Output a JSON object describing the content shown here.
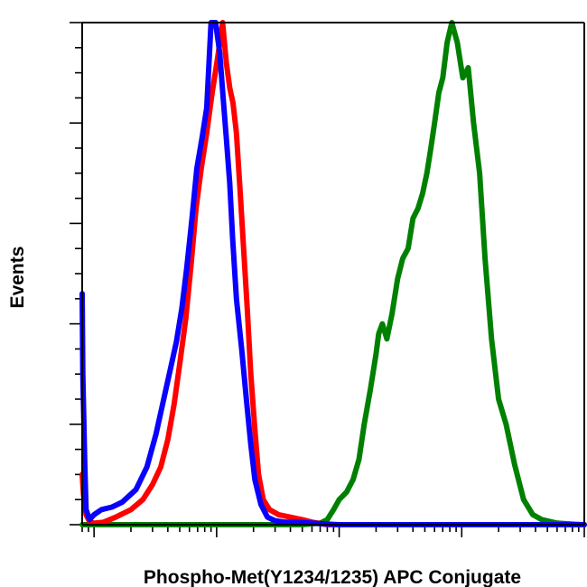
{
  "chart_data": {
    "type": "line",
    "title": "",
    "xlabel": "Phospho-Met(Y1234/1235) APC Conjugate",
    "ylabel": "Events",
    "x_scale": "log",
    "xlim": [
      0.8,
      10000
    ],
    "ylim": [
      0,
      100
    ],
    "grid": false,
    "legend": "none",
    "series": [
      {
        "color": "#0a00ff",
        "x": [
          0.8,
          0.81,
          0.84,
          0.86,
          0.92,
          1.0,
          1.15,
          1.4,
          1.7,
          2.2,
          2.7,
          3.2,
          3.7,
          4.2,
          4.7,
          5.2,
          5.7,
          6.3,
          6.9,
          7.6,
          8.3,
          9.0,
          9.8,
          10.6,
          11.3,
          12.0,
          12.8,
          13.5,
          14.5,
          16.0,
          17.5,
          19.0,
          20.5,
          23.0,
          26,
          30,
          36,
          45,
          60,
          80,
          100,
          10000
        ],
        "y": [
          46,
          30,
          12,
          3,
          1,
          2,
          3,
          3.5,
          4.5,
          7,
          11.5,
          18,
          25,
          31,
          36.5,
          43,
          51,
          61,
          71,
          77,
          83,
          100,
          100,
          94,
          85,
          77,
          68,
          57,
          45,
          35,
          25,
          16,
          9,
          4,
          1.5,
          0.8,
          0.5,
          0.5,
          0.3,
          0.1,
          0,
          0
        ]
      },
      {
        "color": "#ff0000",
        "x": [
          0.8,
          0.82,
          0.86,
          0.92,
          1.0,
          1.2,
          1.5,
          2.0,
          2.5,
          3.0,
          3.5,
          4.0,
          4.5,
          5.0,
          5.6,
          6.2,
          6.8,
          7.5,
          8.3,
          9.2,
          10.2,
          11.2,
          12.0,
          12.8,
          13.6,
          14.5,
          15.5,
          16.5,
          17.8,
          19.0,
          20.5,
          22.0,
          24.0,
          27,
          32,
          40,
          50,
          60,
          80,
          10000
        ],
        "y": [
          10,
          6,
          2,
          0.6,
          0.3,
          0.5,
          1.5,
          3,
          5,
          8,
          11.5,
          17,
          24,
          32,
          41,
          52,
          63,
          71,
          78,
          86,
          93,
          100,
          92,
          87,
          84,
          78,
          67,
          56,
          43,
          30,
          19,
          10,
          5,
          3,
          2,
          1.5,
          1,
          0.5,
          0,
          0
        ]
      },
      {
        "color": "#008000",
        "x": [
          0.8,
          50,
          70,
          80,
          90,
          100,
          115,
          130,
          145,
          160,
          180,
          200,
          210,
          225,
          245,
          270,
          300,
          330,
          365,
          400,
          440,
          480,
          520,
          560,
          600,
          650,
          700,
          760,
          830,
          920,
          1020,
          1130,
          1250,
          1400,
          1550,
          1750,
          2000,
          2300,
          2700,
          3200,
          3800,
          4500,
          6000,
          8000,
          10000
        ],
        "y": [
          0,
          0,
          0.3,
          1,
          3,
          5,
          6.5,
          9,
          13,
          20,
          27,
          34,
          38,
          40,
          37,
          42,
          49,
          53,
          55,
          61,
          63,
          66,
          70,
          75,
          80,
          86,
          89,
          96,
          100,
          96,
          89,
          91,
          80,
          70,
          53,
          37,
          25,
          20,
          12,
          5,
          2,
          1,
          0.3,
          0.1,
          0
        ]
      }
    ]
  }
}
